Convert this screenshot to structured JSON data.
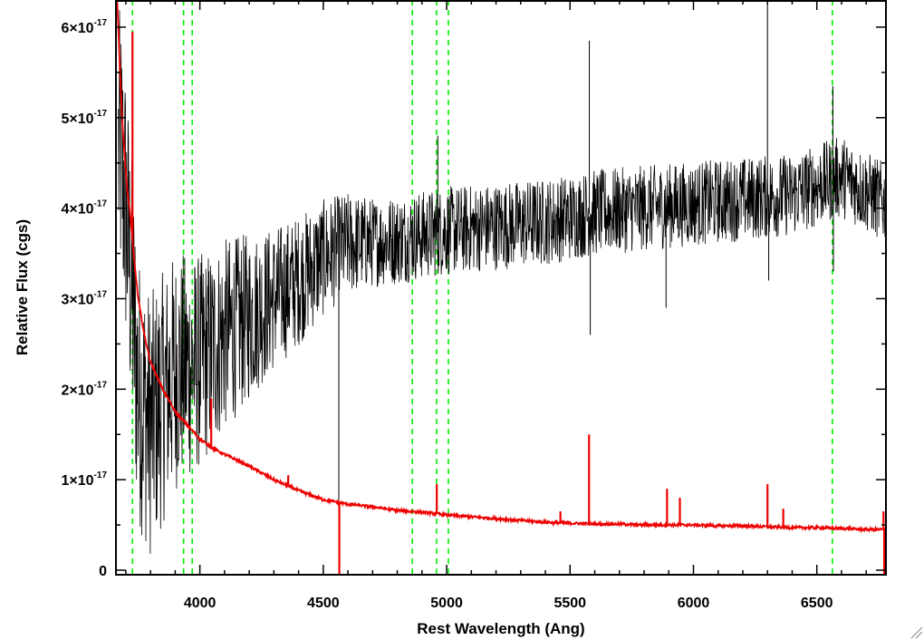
{
  "chart_data": {
    "type": "line",
    "title": "",
    "xlabel": "Rest Wavelength (Ang)",
    "ylabel": "Relative Flux (cgs)",
    "xlim": [
      3660,
      6780
    ],
    "ylim": [
      -0.05,
      6.3
    ],
    "y_scale_note": "×10^-17",
    "grid": false,
    "legend": "none",
    "x_ticks": [
      4000,
      4500,
      5000,
      5500,
      6000,
      6500
    ],
    "x_tick_labels": [
      "4000",
      "4500",
      "5000",
      "5500",
      "6000",
      "6500"
    ],
    "y_ticks": [
      0,
      1,
      2,
      3,
      4,
      5,
      6
    ],
    "y_tick_labels": [
      {
        "mantissa": "0",
        "exponent": ""
      },
      {
        "mantissa": "1×10",
        "exponent": "-17"
      },
      {
        "mantissa": "2×10",
        "exponent": "-17"
      },
      {
        "mantissa": "3×10",
        "exponent": "-17"
      },
      {
        "mantissa": "4×10",
        "exponent": "-17"
      },
      {
        "mantissa": "5×10",
        "exponent": "-17"
      },
      {
        "mantissa": "6×10",
        "exponent": "-17"
      }
    ],
    "reference_lines": {
      "color": "#00ee00",
      "style": "dashed",
      "x": [
        3727,
        3934,
        3969,
        4861,
        4959,
        5007,
        6563
      ]
    },
    "series": [
      {
        "role": "spectrum",
        "color": "#000000",
        "trend": {
          "x": [
            3680,
            3700,
            3750,
            3800,
            3900,
            4000,
            4100,
            4200,
            4300,
            4400,
            4500,
            4600,
            4800,
            5000,
            5200,
            5400,
            5600,
            5800,
            6000,
            6200,
            6400,
            6600,
            6780
          ],
          "y": [
            4.6,
            4.0,
            2.0,
            1.6,
            2.2,
            2.3,
            2.6,
            2.8,
            3.0,
            3.2,
            3.45,
            3.6,
            3.65,
            3.75,
            3.8,
            3.85,
            3.95,
            4.0,
            4.05,
            4.1,
            4.15,
            4.35,
            4.05
          ]
        },
        "noise": [
          {
            "x": 3700,
            "amp": 1.6
          },
          {
            "x": 4000,
            "amp": 1.2
          },
          {
            "x": 4300,
            "amp": 0.8
          },
          {
            "x": 4700,
            "amp": 0.5
          },
          {
            "x": 6780,
            "amp": 0.45
          }
        ],
        "spikes": [
          {
            "x": 4563,
            "y": -0.05
          },
          {
            "x": 4964,
            "y": 4.8
          },
          {
            "x": 5578,
            "y": 5.85
          },
          {
            "x": 5582,
            "y": 2.6
          },
          {
            "x": 5889,
            "y": 2.9
          },
          {
            "x": 6300,
            "y": 6.3
          },
          {
            "x": 6305,
            "y": 3.2
          },
          {
            "x": 6565,
            "y": 5.35
          },
          {
            "x": 6567,
            "y": 3.3
          }
        ]
      },
      {
        "role": "error",
        "color": "#ee0000",
        "x": [
          3665,
          3675,
          3685,
          3695,
          3705,
          3715,
          3725,
          3735,
          3750,
          3775,
          3800,
          3850,
          3900,
          3950,
          4000,
          4050,
          4100,
          4200,
          4300,
          4400,
          4500,
          4600,
          4700,
          4800,
          4900,
          5000,
          5100,
          5200,
          5300,
          5400,
          5500,
          5600,
          5700,
          5800,
          5900,
          6000,
          6100,
          6200,
          6300,
          6400,
          6500,
          6600,
          6700,
          6780
        ],
        "y": [
          6.3,
          5.6,
          5.0,
          4.6,
          4.2,
          4.0,
          3.7,
          3.4,
          3.0,
          2.6,
          2.3,
          2.0,
          1.75,
          1.6,
          1.45,
          1.35,
          1.28,
          1.15,
          1.0,
          0.88,
          0.78,
          0.73,
          0.7,
          0.66,
          0.64,
          0.61,
          0.59,
          0.57,
          0.55,
          0.53,
          0.52,
          0.51,
          0.51,
          0.5,
          0.5,
          0.5,
          0.49,
          0.49,
          0.48,
          0.47,
          0.47,
          0.46,
          0.45,
          0.45
        ],
        "spikes": [
          {
            "x": 3727,
            "y": 5.95
          },
          {
            "x": 4046,
            "y": 1.9
          },
          {
            "x": 4358,
            "y": 1.05
          },
          {
            "x": 4565,
            "y": -0.05
          },
          {
            "x": 4960,
            "y": 0.95
          },
          {
            "x": 5461,
            "y": 0.65
          },
          {
            "x": 5577,
            "y": 1.5
          },
          {
            "x": 5893,
            "y": 0.9
          },
          {
            "x": 5945,
            "y": 0.8
          },
          {
            "x": 6300,
            "y": 0.95
          },
          {
            "x": 6364,
            "y": 0.68
          },
          {
            "x": 6770,
            "y": 0.65
          },
          {
            "x": 6773,
            "y": -0.05
          }
        ]
      }
    ]
  }
}
